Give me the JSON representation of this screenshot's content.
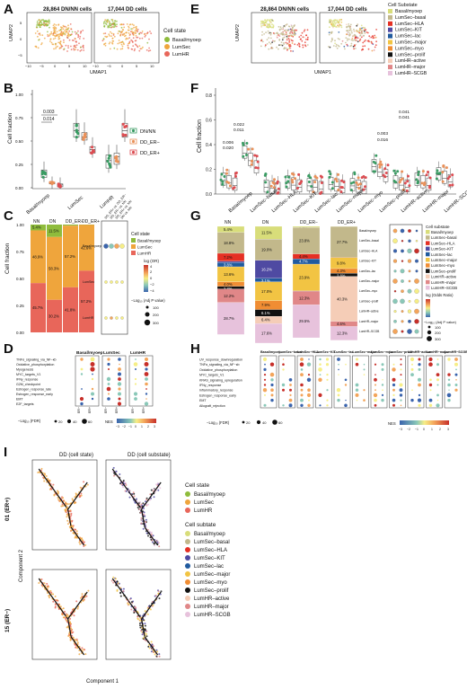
{
  "panel_labels": [
    "A",
    "B",
    "C",
    "D",
    "E",
    "F",
    "G",
    "H",
    "I"
  ],
  "colors": {
    "basal": "#8fbc3c",
    "lumsec": "#efa53c",
    "lumhr": "#e8665a",
    "dn": "#3a9b63",
    "er_neg": "#e9915a",
    "er_pos": "#dc4d52",
    "ss_basal": "#d8dd7a",
    "ss_lumsec_basal": "#c2b88b",
    "ss_hla": "#e53024",
    "ss_kit": "#4f4aa2",
    "ss_lac": "#205a9e",
    "ss_major": "#f2c443",
    "ss_myo": "#f08d33",
    "ss_prolif": "#111111",
    "ss_active": "#f5cdb7",
    "ss_lumhr_major": "#e08788",
    "ss_scgb": "#e7c2dc"
  },
  "panelA": {
    "umap_titles": [
      "28,864 DN/NN cells",
      "17,044 DD cells"
    ],
    "xlabel": "UMAP1",
    "ylabel": "UMAP2",
    "xticks": [
      "−10",
      "−5",
      "0",
      "5",
      "10",
      "−10",
      "−5",
      "0",
      "5",
      "10"
    ],
    "yticks": [
      "5",
      "0",
      "−5"
    ],
    "legend_title": "Cell state",
    "legend": [
      "Basal/myoep",
      "LumSec",
      "LumHR"
    ]
  },
  "panelE": {
    "umap_titles": [
      "28,864 DN/NN cells",
      "17,044 DD cells"
    ],
    "xlabel": "UMAP1",
    "ylabel": "UMAP2",
    "legend_title": "Cell Substate",
    "legend": [
      "Basal/myoep",
      "LumSec–basal",
      "LumSec–HLA",
      "LumSec–KIT",
      "LumSec–lac",
      "LumSec–major",
      "LumSec–myo",
      "LumSec–prolif",
      "LumHR–active",
      "LumHR–major",
      "LumHR–SCGB"
    ]
  },
  "panelB": {
    "ylabel": "Cell fraction",
    "categories": [
      "Basal/myoep",
      "LumSec",
      "LumHR"
    ],
    "yticks": [
      "1.00",
      "0.75",
      "0.50",
      "0.25",
      "0.00"
    ],
    "pvalues": [
      "0.003",
      "0.014"
    ],
    "legend": [
      "DN/NN",
      "DD_ER−",
      "DD_ER+"
    ]
  },
  "panelF": {
    "ylabel": "Cell fraction",
    "categories": [
      "Basal/myoep",
      "LumSec–basal",
      "LumSec–HLA",
      "LumSec–KIT",
      "LumSec–lac",
      "LumSec–major",
      "LumSec–myo",
      "LumSec–prolif",
      "LumHR–active",
      "LumHR–major",
      "LumHR–SCGB"
    ],
    "yticks": [
      "0.8",
      "0.6",
      "0.4",
      "0.2",
      "0.0"
    ],
    "pvalues": [
      "0.006",
      "0.020",
      "0.022",
      "0.011",
      "0.003",
      "0.016",
      "0.041",
      "0.041"
    ]
  },
  "panelC": {
    "ylabel": "Cell fraction",
    "groups": [
      "NN",
      "DN",
      "DD_ER−",
      "DD_ER+"
    ],
    "stack_labels": [
      [
        "5.4%",
        "48.9%",
        "45.7%"
      ],
      [
        "11.5%",
        "58.3%",
        "30.2%"
      ],
      [
        "1.0%",
        "57.2%",
        "41.8%"
      ],
      [
        "0.2%",
        "42.6%",
        "57.2%"
      ]
    ],
    "yticks": [
      "1.00",
      "0.75",
      "0.50",
      "0.25",
      "0.00"
    ],
    "dot_x": [
      "DD_ER+ vs. DD_ER−",
      "DD_ER− vs. NN",
      "DD_ER+ vs. NN",
      "DN vs. NN"
    ],
    "dot_y": [
      "Basal/myoep",
      "LumSec",
      "LumHR"
    ],
    "legend_title": "Cell state",
    "legend": [
      "Basal/myoep",
      "LumSec",
      "LumHR"
    ],
    "color_title": "log (OR)",
    "color_ticks": [
      "4",
      "2",
      "0",
      "−2",
      "−4"
    ],
    "size_title": "−Log₁₀ (Adj P value)",
    "size_ticks": [
      "100",
      "200",
      "300"
    ]
  },
  "panelG": {
    "groups": [
      "NN",
      "DN",
      "DD_ER−",
      "DD_ER+"
    ],
    "stack_labels": [
      [
        "5.4%",
        "18.8%",
        "7.2%",
        "1.1%",
        "3.8%",
        "13.6%",
        "4.0%",
        "2.3%",
        "12.2%",
        "28.7%"
      ],
      [
        "11.5%",
        "19.0%",
        "16.2%",
        "3.1%",
        "17.0%",
        "7.9%",
        "6.1%",
        "6.4%",
        "17.6%"
      ],
      [
        "1.0%",
        "23.8%",
        "4.4%",
        "4.7%",
        "23.9%",
        "0.2%",
        "0.2%",
        "12.3%",
        "29.5%"
      ],
      [
        "0.2%",
        "27.7%",
        "0.2%",
        "9.8%",
        "4.3%",
        "2.8%",
        "40.3%",
        "4.6%",
        "12.3%"
      ]
    ],
    "dot_y": [
      "Basal/myoep",
      "LumSec–basal",
      "LumSec–HLA",
      "LumSec–KIT",
      "LumSec–lac",
      "LumSec–major",
      "LumSec–myo",
      "LumSec–prolif",
      "LumHR–active",
      "LumHR–major",
      "LumHR–SCGB"
    ],
    "legend_title": "Cell substate",
    "legend": [
      "Basal/myoep",
      "LumSec–basal",
      "LumSec–HLA",
      "LumSec–KIT",
      "LumSec–lac",
      "LumSec–major",
      "LumSec–myo",
      "LumSec–prolif",
      "LumHR–active",
      "LumHR–major",
      "LumHR–SCGB"
    ],
    "color_title": "log (Odds Ratio)",
    "size_title": "−Log₁₀ (Adj P value)",
    "size_ticks": [
      "100",
      "200",
      "300"
    ]
  },
  "panelD": {
    "columns": [
      "Basal/myoep",
      "LumSec",
      "LumHR"
    ],
    "rows": [
      "TNFα_signaling_via_NF−κb",
      "Oxidative_phosphorylation",
      "Myogenesis",
      "MYC_targets_V1",
      "IFNγ_response",
      "G2M_checkpoint",
      "Estrogen_response_late",
      "Estrogen_response_early",
      "EMT",
      "E2F_targets"
    ],
    "xticks": [
      "ER−",
      "ER+"
    ],
    "size_title": "−Log₁₀ (FDR)",
    "size_ticks": [
      "20",
      "40",
      "60"
    ],
    "color_title": "NES",
    "color_ticks": [
      "−3",
      "−2",
      "−1",
      "0",
      "1",
      "2",
      "3"
    ]
  },
  "panelH": {
    "columns": [
      "Basal/myoep",
      "LumSec−basal",
      "LumSec−HLA",
      "LumSec−KIT",
      "LumSec−lac",
      "LumSec−major",
      "LumSec−myo",
      "LumSec−prolif",
      "LumHR−active",
      "LumHR−major",
      "LumHR−SCGB"
    ],
    "rows": [
      "UV_response_downregulation",
      "TNFα_signaling_via_NF−κb",
      "Oxidative_phosphorylation",
      "MYC_targets_V1",
      "KRAS_signaling_upregulation",
      "IFNγ_response",
      "Inflammatory_response",
      "Estrogen_response_early",
      "EMT",
      "Allograft_rejection"
    ],
    "size_title": "−Log₁₀ (FDR)",
    "size_ticks": [
      "20",
      "40",
      "60"
    ],
    "color_title": "NES",
    "color_ticks": [
      "−3",
      "−2",
      "−1",
      "0",
      "1",
      "2",
      "3"
    ]
  },
  "panelI": {
    "titles": [
      "DD (cell state)",
      "DD (cell substate)"
    ],
    "row_labels": [
      "01 (ER+)",
      "15 (ER−)"
    ],
    "xlabel": "Component 1",
    "ylabel": "Component 2",
    "legend1_title": "Cell state",
    "legend1": [
      "Basal/myoep",
      "LumSec",
      "LumHR"
    ],
    "legend2_title": "Cell subtate",
    "legend2": [
      "Basal/myoep",
      "LumSec–basal",
      "LumSec–HLA",
      "LumSec–KIT",
      "LumSec–lac",
      "LumSec–major",
      "LumSec–myo",
      "LumSec–prolif",
      "LumHR–active",
      "LumHR–major",
      "LumHR–SCGB"
    ]
  }
}
